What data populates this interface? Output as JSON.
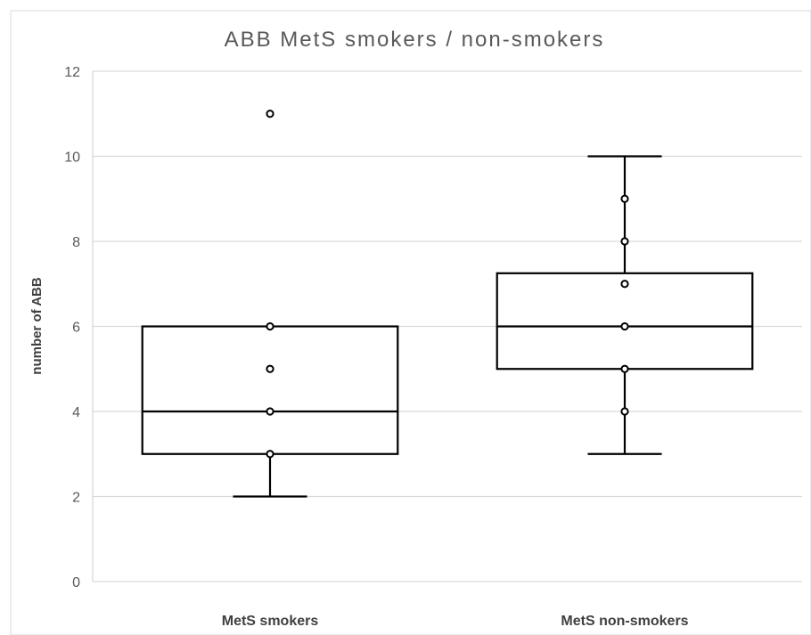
{
  "chart_data": {
    "type": "box",
    "title": "ABB MetS smokers / non-smokers",
    "ylabel": "number of ABB",
    "xlabel": "",
    "ylim": [
      0,
      12
    ],
    "yticks": [
      "0",
      "2",
      "4",
      "6",
      "8",
      "10",
      "12"
    ],
    "grid": true,
    "categories": [
      "MetS smokers",
      "MetS non-smokers"
    ],
    "series": [
      {
        "min": 2,
        "q1": 3,
        "median": 4,
        "q3": 6,
        "max": 6,
        "points": [
          11,
          6,
          5,
          4,
          3
        ]
      },
      {
        "min": 3,
        "q1": 5,
        "median": 6,
        "q3": 7.25,
        "max": 10,
        "points": [
          9,
          8,
          7,
          6,
          5,
          4
        ]
      }
    ]
  },
  "colors": {
    "box": "#000000",
    "grid": "#d9d9d9",
    "text": "#595959"
  }
}
